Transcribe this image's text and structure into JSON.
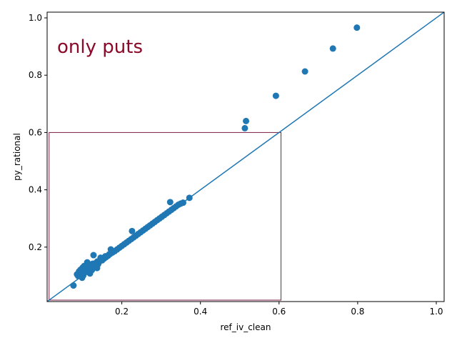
{
  "chart_data": {
    "type": "scatter",
    "title": "",
    "xlabel": "ref_iv_clean",
    "ylabel": "py_rational",
    "xlim": [
      0.01,
      1.02
    ],
    "ylim": [
      0.01,
      1.02
    ],
    "x_ticks": [
      0.2,
      0.4,
      0.6,
      0.8,
      1.0
    ],
    "y_ticks": [
      0.2,
      0.4,
      0.6,
      0.8,
      1.0
    ],
    "x_tick_labels": [
      "0.2",
      "0.4",
      "0.6",
      "0.8",
      "1.0"
    ],
    "y_tick_labels": [
      "0.2",
      "0.4",
      "0.6",
      "0.8",
      "1.0"
    ],
    "grid": false,
    "annotation": {
      "text": "only puts",
      "color": "#8b0a2a"
    },
    "reference_line": {
      "from": [
        0.0,
        0.0
      ],
      "to": [
        1.05,
        1.05
      ],
      "color": "#1f77b4"
    },
    "highlight_box": {
      "x0": 0.015,
      "x1": 0.605,
      "y0": 0.015,
      "y1": 0.6,
      "color": "#7b1f45"
    },
    "marker_color": "#1f77b4",
    "points": [
      [
        0.798,
        0.966
      ],
      [
        0.737,
        0.893
      ],
      [
        0.666,
        0.813
      ],
      [
        0.592,
        0.728
      ],
      [
        0.516,
        0.64
      ],
      [
        0.513,
        0.615
      ],
      [
        0.372,
        0.372
      ],
      [
        0.356,
        0.355
      ],
      [
        0.323,
        0.357
      ],
      [
        0.226,
        0.256
      ],
      [
        0.172,
        0.192
      ],
      [
        0.128,
        0.172
      ],
      [
        0.146,
        0.163
      ],
      [
        0.112,
        0.147
      ],
      [
        0.077,
        0.066
      ],
      [
        0.099,
        0.093
      ],
      [
        0.089,
        0.099
      ],
      [
        0.137,
        0.127
      ],
      [
        0.119,
        0.108
      ],
      [
        0.108,
        0.113
      ],
      [
        0.086,
        0.105
      ],
      [
        0.091,
        0.115
      ],
      [
        0.095,
        0.121
      ],
      [
        0.1,
        0.128
      ],
      [
        0.104,
        0.134
      ],
      [
        0.11,
        0.118
      ],
      [
        0.114,
        0.124
      ],
      [
        0.118,
        0.131
      ],
      [
        0.122,
        0.137
      ],
      [
        0.126,
        0.142
      ],
      [
        0.13,
        0.139
      ],
      [
        0.134,
        0.145
      ],
      [
        0.138,
        0.15
      ],
      [
        0.142,
        0.148
      ],
      [
        0.15,
        0.154
      ],
      [
        0.155,
        0.16
      ],
      [
        0.16,
        0.165
      ],
      [
        0.165,
        0.17
      ],
      [
        0.17,
        0.176
      ],
      [
        0.176,
        0.181
      ],
      [
        0.182,
        0.186
      ],
      [
        0.188,
        0.192
      ],
      [
        0.194,
        0.198
      ],
      [
        0.2,
        0.204
      ],
      [
        0.206,
        0.21
      ],
      [
        0.212,
        0.216
      ],
      [
        0.218,
        0.222
      ],
      [
        0.224,
        0.228
      ],
      [
        0.23,
        0.234
      ],
      [
        0.236,
        0.24
      ],
      [
        0.242,
        0.246
      ],
      [
        0.248,
        0.252
      ],
      [
        0.254,
        0.258
      ],
      [
        0.26,
        0.264
      ],
      [
        0.266,
        0.27
      ],
      [
        0.272,
        0.276
      ],
      [
        0.278,
        0.282
      ],
      [
        0.284,
        0.288
      ],
      [
        0.29,
        0.294
      ],
      [
        0.296,
        0.3
      ],
      [
        0.302,
        0.306
      ],
      [
        0.308,
        0.312
      ],
      [
        0.314,
        0.318
      ],
      [
        0.32,
        0.324
      ],
      [
        0.326,
        0.33
      ],
      [
        0.332,
        0.336
      ],
      [
        0.338,
        0.342
      ],
      [
        0.344,
        0.348
      ],
      [
        0.35,
        0.352
      ],
      [
        0.096,
        0.108
      ],
      [
        0.102,
        0.101
      ],
      [
        0.106,
        0.125
      ],
      [
        0.116,
        0.113
      ],
      [
        0.124,
        0.12
      ],
      [
        0.132,
        0.134
      ],
      [
        0.14,
        0.141
      ],
      [
        0.148,
        0.158
      ],
      [
        0.158,
        0.168
      ],
      [
        0.168,
        0.175
      ]
    ]
  }
}
